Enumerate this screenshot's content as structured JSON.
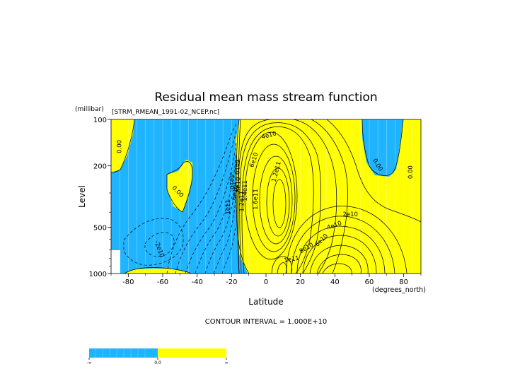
{
  "chart_data": {
    "type": "contour",
    "title": "Residual mean mass stream function",
    "subtitle": "[STRM_RMEAN_1991-02_NCEP.nc]",
    "xlabel": "Latitude",
    "xunits": "(degrees_north)",
    "ylabel": "Level",
    "yunits": "(millibar)",
    "xlim": [
      -90,
      90
    ],
    "ylim": [
      1000,
      100
    ],
    "yscale": "log",
    "xticks": [
      -80,
      -60,
      -40,
      -20,
      0,
      20,
      40,
      60,
      80
    ],
    "xtick_labels": [
      "-80",
      "-60",
      "-40",
      "-20",
      "0",
      "20",
      "40",
      "60",
      "80"
    ],
    "yticks": [
      100,
      200,
      500,
      1000
    ],
    "ytick_labels": [
      "100",
      "200",
      "500",
      "1000"
    ],
    "contour_interval_text": "CONTOUR INTERVAL = 1.000E+10",
    "fill_colors": {
      "negative": "#1EB4FF",
      "positive": "#FFFF00",
      "missing": "#FFFFFF"
    },
    "legend": {
      "labels": [
        "-∞",
        "0.0",
        "∞"
      ]
    },
    "contour_labels": [
      {
        "text": "0.00",
        "lat": -84,
        "lev": 150,
        "angle": -90
      },
      {
        "text": "0.00",
        "lat": -52,
        "lev": 300,
        "angle": 45
      },
      {
        "text": "0.00",
        "lat": 64,
        "lev": 200,
        "angle": 60
      },
      {
        "text": "0.00",
        "lat": 85,
        "lev": 220,
        "angle": -90
      },
      {
        "text": "-2e10",
        "lat": -63,
        "lev": 700,
        "angle": 70
      },
      {
        "text": "-4e10",
        "lat": -21,
        "lev": 250,
        "angle": 90
      },
      {
        "text": "-6e10",
        "lat": -18,
        "lev": 200,
        "angle": 90
      },
      {
        "text": "1e11",
        "lat": -21,
        "lev": 370,
        "angle": -90
      },
      {
        "text": "6e10",
        "lat": -17,
        "lev": 300,
        "angle": -80
      },
      {
        "text": "8e10",
        "lat": -15,
        "lev": 265,
        "angle": -90
      },
      {
        "text": "1.2e11",
        "lat": -13,
        "lev": 340,
        "angle": -90
      },
      {
        "text": "1.4e11",
        "lat": -11,
        "lev": 290,
        "angle": -90
      },
      {
        "text": "1.6e11",
        "lat": -5,
        "lev": 330,
        "angle": -90
      },
      {
        "text": "6e10",
        "lat": -6,
        "lev": 185,
        "angle": -70
      },
      {
        "text": "4e10",
        "lat": 2,
        "lev": 130,
        "angle": -15
      },
      {
        "text": "1.2e11",
        "lat": 7,
        "lev": 220,
        "angle": -75
      },
      {
        "text": "2e10",
        "lat": 49,
        "lev": 425,
        "angle": 0
      },
      {
        "text": "4e10",
        "lat": 40,
        "lev": 500,
        "angle": -20
      },
      {
        "text": "6e10",
        "lat": 33,
        "lev": 620,
        "angle": -45
      },
      {
        "text": "8e10",
        "lat": 24,
        "lev": 700,
        "angle": -30
      },
      {
        "text": "1e11",
        "lat": 15,
        "lev": 830,
        "angle": -10
      }
    ]
  }
}
